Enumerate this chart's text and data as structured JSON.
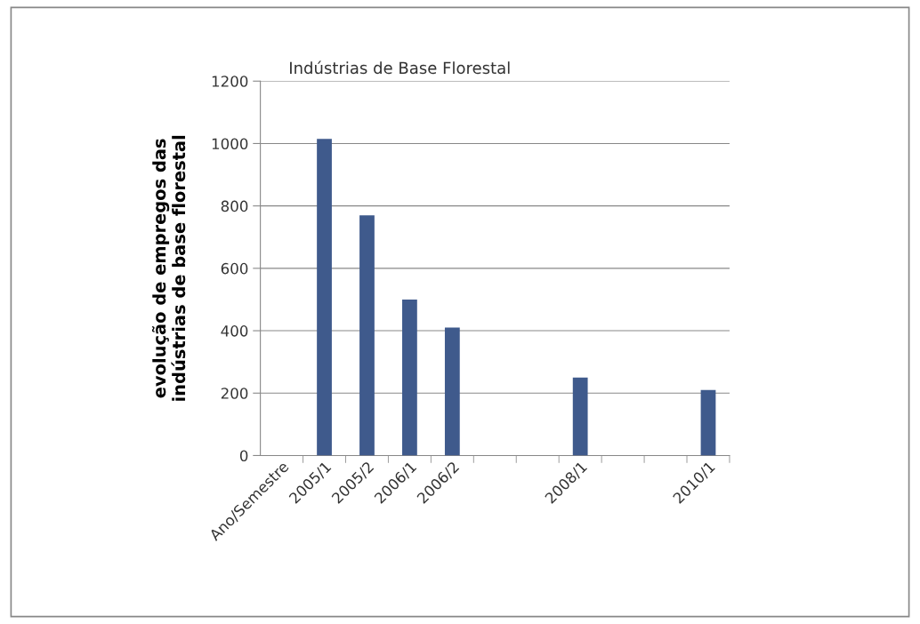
{
  "chart_data": {
    "type": "bar",
    "title": "Indústrias de Base Florestal",
    "ylabel": "evolução de empregos das\nindústrias de base florestal",
    "categories": [
      "Ano/Semestre",
      "2005/1",
      "2005/2",
      "2006/1",
      "2006/2",
      null,
      null,
      "2008/1",
      null,
      null,
      "2010/1"
    ],
    "values": [
      null,
      1015,
      770,
      500,
      410,
      null,
      null,
      250,
      null,
      null,
      210
    ],
    "color": "#3f5a8c",
    "ylim": [
      0,
      1200
    ],
    "yticks": [
      0,
      200,
      400,
      600,
      800,
      1000,
      1200
    ],
    "grid": "y",
    "legend": false
  }
}
